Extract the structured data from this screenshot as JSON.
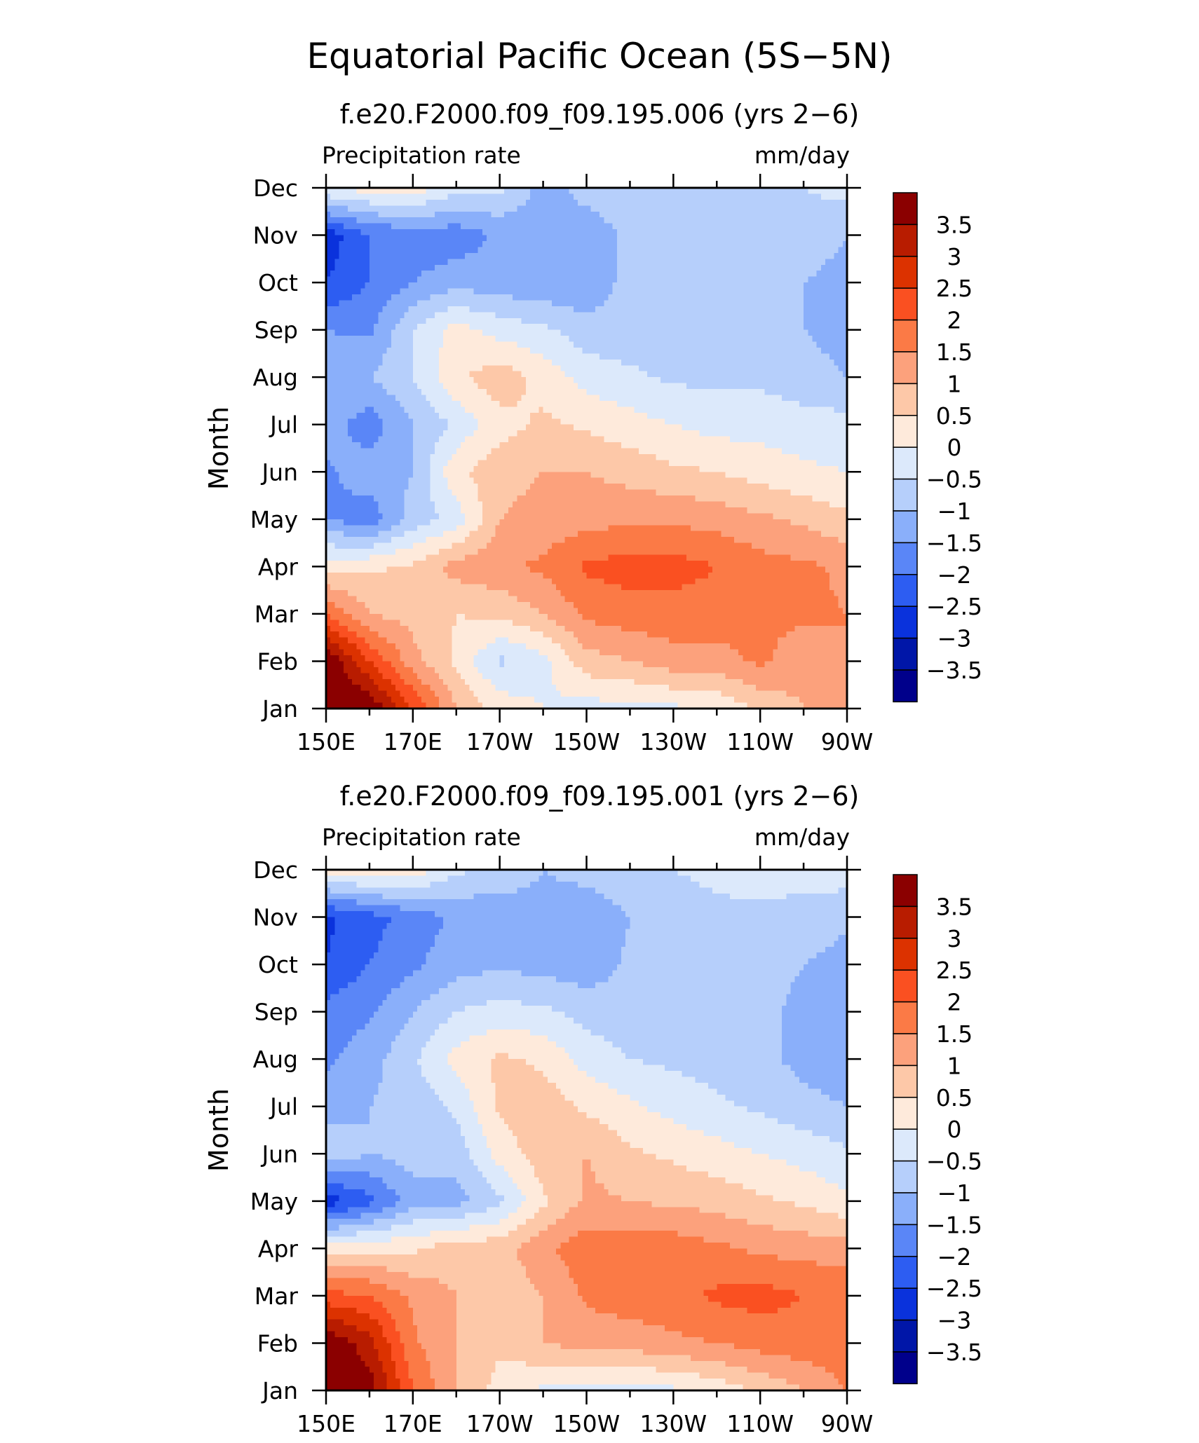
{
  "figure": {
    "title": "Equatorial Pacific Ocean (5S−5N)"
  },
  "chart_data": [
    {
      "type": "heatmap",
      "title": "f.e20.F2000.f09_f09.195.006 (yrs 2−6)",
      "left_label": "Precipitation rate",
      "right_label": "mm/day",
      "xlabel": "",
      "ylabel": "Month",
      "x_ticks": [
        "150E",
        "170E",
        "170W",
        "150W",
        "130W",
        "110W",
        "90W"
      ],
      "y_ticks": [
        "Jan",
        "Feb",
        "Mar",
        "Apr",
        "May",
        "Jun",
        "Jul",
        "Aug",
        "Sep",
        "Oct",
        "Nov",
        "Dec"
      ],
      "xlim": [
        150,
        270
      ],
      "ylim": [
        0,
        11
      ],
      "colorbar": {
        "labels": [
          "3.5",
          "3",
          "2.5",
          "2",
          "1.5",
          "1",
          "0.5",
          "0",
          "−0.5",
          "−1",
          "−1.5",
          "−2",
          "−2.5",
          "−3",
          "−3.5"
        ],
        "colors": [
          "#8b0000",
          "#b81c00",
          "#dc3200",
          "#fa5021",
          "#fb7a46",
          "#fca17c",
          "#fdc8a8",
          "#feeadb",
          "#dce9fb",
          "#b6cffb",
          "#8aaffa",
          "#5a86f7",
          "#2d5df2",
          "#0a32dc",
          "#0016a8",
          "#00008b"
        ]
      },
      "x": [
        150,
        160,
        170,
        180,
        190,
        200,
        210,
        220,
        230,
        240,
        250,
        260,
        270
      ],
      "z": [
        [
          4.0,
          4.0,
          2.5,
          1.0,
          0.3,
          0.0,
          -0.2,
          -0.2,
          -0.1,
          0.1,
          0.6,
          1.0,
          1.5
        ],
        [
          4.0,
          2.5,
          1.2,
          0.4,
          -0.6,
          -0.2,
          0.8,
          1.0,
          1.3,
          1.3,
          1.6,
          1.2,
          1.5
        ],
        [
          2.0,
          1.0,
          0.8,
          0.5,
          0.6,
          1.0,
          1.6,
          1.8,
          1.8,
          1.8,
          1.6,
          1.6,
          1.5
        ],
        [
          0.3,
          0.4,
          0.6,
          1.2,
          1.4,
          1.6,
          2.1,
          2.2,
          2.2,
          2.0,
          1.7,
          1.6,
          1.4
        ],
        [
          -1.5,
          -1.8,
          -0.8,
          -0.3,
          1.0,
          1.2,
          1.3,
          1.4,
          1.4,
          1.3,
          1.1,
          0.9,
          0.6
        ],
        [
          -1.6,
          -1.2,
          -1.0,
          0.4,
          0.8,
          1.0,
          1.0,
          0.8,
          0.6,
          0.5,
          0.3,
          0.1,
          0.0
        ],
        [
          -1.2,
          -1.8,
          -1.0,
          -0.4,
          0.3,
          0.6,
          0.4,
          0.2,
          0.0,
          -0.2,
          -0.2,
          -0.3,
          -0.3
        ],
        [
          -1.2,
          -1.0,
          -0.5,
          0.4,
          0.8,
          0.3,
          -0.2,
          -0.4,
          -0.6,
          -0.6,
          -0.6,
          -0.8,
          -1.0
        ],
        [
          -1.5,
          -1.6,
          -0.5,
          0.2,
          -0.2,
          -0.4,
          -0.8,
          -0.8,
          -0.8,
          -0.6,
          -0.6,
          -1.0,
          -1.2
        ],
        [
          -2.5,
          -2.0,
          -1.5,
          -1.2,
          -1.3,
          -1.4,
          -1.4,
          -0.8,
          -0.6,
          -0.6,
          -0.6,
          -1.0,
          -1.2
        ],
        [
          -2.8,
          -2.0,
          -1.8,
          -1.8,
          -1.4,
          -1.3,
          -1.3,
          -0.9,
          -0.6,
          -0.6,
          -0.6,
          -0.7,
          -1.0
        ],
        [
          0.0,
          0.2,
          0.3,
          -0.3,
          -0.4,
          -1.2,
          -0.8,
          -0.6,
          -0.5,
          -0.5,
          -0.5,
          -0.5,
          -0.3
        ]
      ]
    },
    {
      "type": "heatmap",
      "title": "f.e20.F2000.f09_f09.195.001 (yrs 2−6)",
      "left_label": "Precipitation rate",
      "right_label": "mm/day",
      "xlabel": "",
      "ylabel": "Month",
      "x_ticks": [
        "150E",
        "170E",
        "170W",
        "150W",
        "130W",
        "110W",
        "90W"
      ],
      "y_ticks": [
        "Jan",
        "Feb",
        "Mar",
        "Apr",
        "May",
        "Jun",
        "Jul",
        "Aug",
        "Sep",
        "Oct",
        "Nov",
        "Dec"
      ],
      "xlim": [
        150,
        270
      ],
      "ylim": [
        0,
        11
      ],
      "colorbar": {
        "labels": [
          "3.5",
          "3",
          "2.5",
          "2",
          "1.5",
          "1",
          "0.5",
          "0",
          "−0.5",
          "−1",
          "−1.5",
          "−2",
          "−2.5",
          "−3",
          "−3.5"
        ],
        "colors": [
          "#8b0000",
          "#b81c00",
          "#dc3200",
          "#fa5021",
          "#fb7a46",
          "#fca17c",
          "#fdc8a8",
          "#feeadb",
          "#dce9fb",
          "#b6cffb",
          "#8aaffa",
          "#5a86f7",
          "#2d5df2",
          "#0a32dc",
          "#0016a8",
          "#00008b"
        ]
      },
      "x": [
        150,
        160,
        170,
        180,
        190,
        200,
        210,
        220,
        230,
        240,
        250,
        260,
        270
      ],
      "z": [
        [
          4.0,
          3.8,
          2.0,
          1.0,
          0.3,
          -0.1,
          -0.2,
          -0.2,
          -0.1,
          0.2,
          0.6,
          1.0,
          1.5
        ],
        [
          4.0,
          3.2,
          1.6,
          1.0,
          0.6,
          1.0,
          1.2,
          1.2,
          1.4,
          1.5,
          1.7,
          1.8,
          1.9
        ],
        [
          2.2,
          2.0,
          1.4,
          1.0,
          0.6,
          1.0,
          1.6,
          1.8,
          1.8,
          2.1,
          2.2,
          2.0,
          2.0
        ],
        [
          0.2,
          0.4,
          0.4,
          0.8,
          0.8,
          1.4,
          1.8,
          1.8,
          1.8,
          1.6,
          1.4,
          1.3,
          1.2
        ],
        [
          -2.8,
          -2.2,
          -1.2,
          -1.2,
          -0.6,
          0.4,
          1.1,
          1.0,
          0.9,
          0.8,
          0.6,
          0.4,
          0.1
        ],
        [
          -0.6,
          -1.0,
          -0.8,
          -0.8,
          0.2,
          0.8,
          1.0,
          0.6,
          0.4,
          0.2,
          0.0,
          -0.2,
          -0.4
        ],
        [
          -1.2,
          -1.0,
          -0.8,
          -0.4,
          0.6,
          0.8,
          0.4,
          0.1,
          -0.2,
          -0.4,
          -0.6,
          -0.8,
          -1.0
        ],
        [
          -1.6,
          -1.2,
          -0.6,
          0.2,
          0.6,
          0.4,
          -0.2,
          -0.5,
          -0.6,
          -0.7,
          -0.8,
          -1.2,
          -1.4
        ],
        [
          -1.8,
          -1.6,
          -1.0,
          -0.5,
          -0.3,
          -0.4,
          -0.7,
          -0.8,
          -0.8,
          -0.7,
          -0.8,
          -1.2,
          -1.4
        ],
        [
          -2.5,
          -2.0,
          -1.6,
          -1.2,
          -1.1,
          -1.2,
          -1.3,
          -0.9,
          -0.7,
          -0.6,
          -0.7,
          -1.0,
          -1.2
        ],
        [
          -2.6,
          -2.2,
          -1.8,
          -1.4,
          -1.4,
          -1.2,
          -1.4,
          -1.0,
          -0.7,
          -0.6,
          -0.6,
          -0.7,
          -0.9
        ],
        [
          0.2,
          0.4,
          0.3,
          -0.4,
          -0.6,
          -1.0,
          -0.8,
          -0.6,
          -0.5,
          -0.4,
          -0.3,
          -0.3,
          -0.2
        ]
      ]
    }
  ]
}
